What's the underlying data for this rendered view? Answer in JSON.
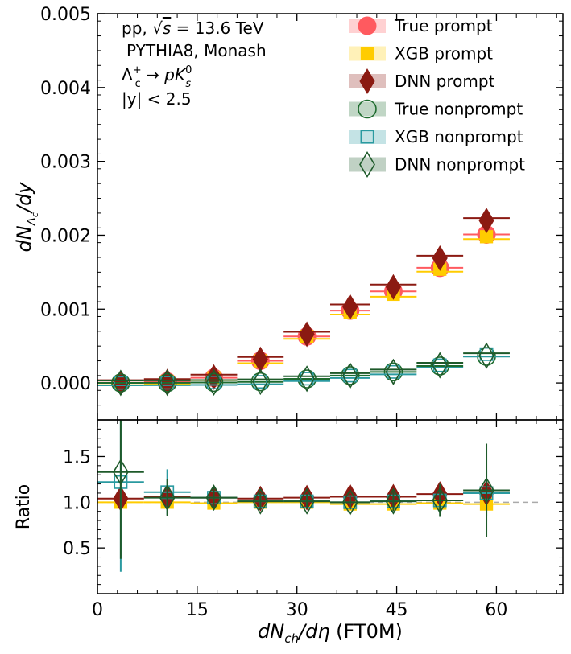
{
  "chart_data": [
    {
      "type": "scatter",
      "panel": "main",
      "ylabel_parts": {
        "main": "dN",
        "sub": "Λ",
        "subsub": "c",
        "tail": "/dy"
      },
      "xlim": [
        0,
        70
      ],
      "ylim": [
        -0.0005,
        0.005
      ],
      "yticks": [
        0.0,
        0.001,
        0.002,
        0.003,
        0.004,
        0.005
      ],
      "ytick_labels": [
        "0.000",
        "0.001",
        "0.002",
        "0.003",
        "0.004",
        "0.005"
      ],
      "annotations": [
        {
          "before": "pp, ",
          "sqrt_var": "s",
          "after": " = 13.6 TeV"
        },
        {
          "text": "PYTHIA8, Monash"
        },
        {
          "base": "Λ",
          "sub": "c",
          "sup": "+",
          "arrow": " → ",
          "p": "p",
          "K": "K",
          "Ksub": "s",
          "Ksup": "0"
        },
        {
          "text": "|y| < 2.5"
        }
      ],
      "x_bins": [
        [
          0,
          7
        ],
        [
          7,
          14
        ],
        [
          14,
          21
        ],
        [
          21,
          28
        ],
        [
          28,
          35
        ],
        [
          35,
          41
        ],
        [
          41,
          48
        ],
        [
          48,
          55
        ],
        [
          55,
          62
        ]
      ],
      "series": [
        {
          "name": "True prompt",
          "marker": "circle",
          "color": "#ff5a5f",
          "values": [
            4e-06,
            2e-05,
            7e-05,
            0.0003,
            0.00063,
            0.00098,
            0.00124,
            0.00156,
            0.00201
          ]
        },
        {
          "name": "XGB prompt",
          "marker": "square",
          "color": "#ffcc00",
          "values": [
            4e-06,
            2e-05,
            7e-05,
            0.0003,
            0.00063,
            0.00096,
            0.0012,
            0.00154,
            0.00198
          ]
        },
        {
          "name": "DNN prompt",
          "marker": "diamond",
          "color": "#8b1a12",
          "values": [
            5e-06,
            2e-05,
            8e-05,
            0.00032,
            0.00066,
            0.00103,
            0.0013,
            0.00169,
            0.0022
          ]
        },
        {
          "name": "True nonprompt",
          "marker": "circle-open",
          "color": "#1e6b2e",
          "values": [
            1e-06,
            3e-06,
            7e-06,
            1.5e-05,
            5.5e-05,
            0.0001,
            0.00015,
            0.00023,
            0.00036
          ]
        },
        {
          "name": "XGB nonprompt",
          "marker": "square-open",
          "color": "#2a9aa0",
          "values": [
            1e-06,
            3e-06,
            7e-06,
            1.6e-05,
            5.8e-05,
            0.0001,
            0.00015,
            0.00024,
            0.00039
          ]
        },
        {
          "name": "DNN nonprompt",
          "marker": "diamond-open",
          "color": "#1e5a2a",
          "values": [
            1e-06,
            3e-06,
            7e-06,
            1.6e-05,
            5.8e-05,
            0.0001,
            0.00015,
            0.00024,
            0.00037
          ]
        }
      ]
    },
    {
      "type": "scatter",
      "panel": "ratio",
      "ylabel": "Ratio",
      "xlabel_parts": {
        "a": "dN",
        "asub": "ch",
        "mid": "/dη",
        "tail": " (FT0M)"
      },
      "xlim": [
        0,
        70
      ],
      "ylim": [
        0.0,
        1.9
      ],
      "xticks": [
        0,
        15,
        30,
        45,
        60
      ],
      "yticks": [
        0.5,
        1.0,
        1.5
      ],
      "ytick_labels": [
        "0.5",
        "1.0",
        "1.5"
      ],
      "reference_line": 1.0,
      "x_bins": [
        [
          0,
          7
        ],
        [
          7,
          14
        ],
        [
          14,
          21
        ],
        [
          21,
          28
        ],
        [
          28,
          35
        ],
        [
          35,
          41
        ],
        [
          41,
          48
        ],
        [
          48,
          55
        ],
        [
          55,
          62
        ]
      ],
      "series": [
        {
          "name": "XGB prompt",
          "marker": "square",
          "color": "#ffcc00",
          "values": [
            1.0,
            1.0,
            0.99,
            1.0,
            1.0,
            0.98,
            0.98,
            0.99,
            0.98
          ],
          "errors": [
            0.02,
            0.02,
            0.02,
            0.02,
            0.02,
            0.02,
            0.02,
            0.02,
            0.02
          ]
        },
        {
          "name": "DNN prompt",
          "marker": "diamond",
          "color": "#8b1a12",
          "values": [
            1.04,
            1.06,
            1.05,
            1.04,
            1.05,
            1.06,
            1.06,
            1.09,
            1.1
          ],
          "errors": [
            0.03,
            0.03,
            0.03,
            0.03,
            0.03,
            0.03,
            0.03,
            0.03,
            0.03
          ]
        },
        {
          "name": "XGB nonprompt",
          "marker": "square-open",
          "color": "#2a9aa0",
          "values": [
            1.22,
            1.11,
            1.05,
            1.01,
            1.01,
            1.0,
            1.01,
            1.02,
            1.1
          ],
          "errors": [
            0.98,
            0.25,
            0.12,
            0.08,
            0.07,
            0.08,
            0.09,
            0.14,
            0.25
          ]
        },
        {
          "name": "DNN nonprompt",
          "marker": "diamond-open",
          "color": "#1e5a2a",
          "values": [
            1.33,
            1.05,
            1.05,
            1.01,
            1.01,
            1.0,
            1.01,
            1.02,
            1.13
          ],
          "errors": [
            0.95,
            0.2,
            0.12,
            0.09,
            0.08,
            0.08,
            0.11,
            0.18,
            0.51
          ]
        }
      ]
    }
  ]
}
